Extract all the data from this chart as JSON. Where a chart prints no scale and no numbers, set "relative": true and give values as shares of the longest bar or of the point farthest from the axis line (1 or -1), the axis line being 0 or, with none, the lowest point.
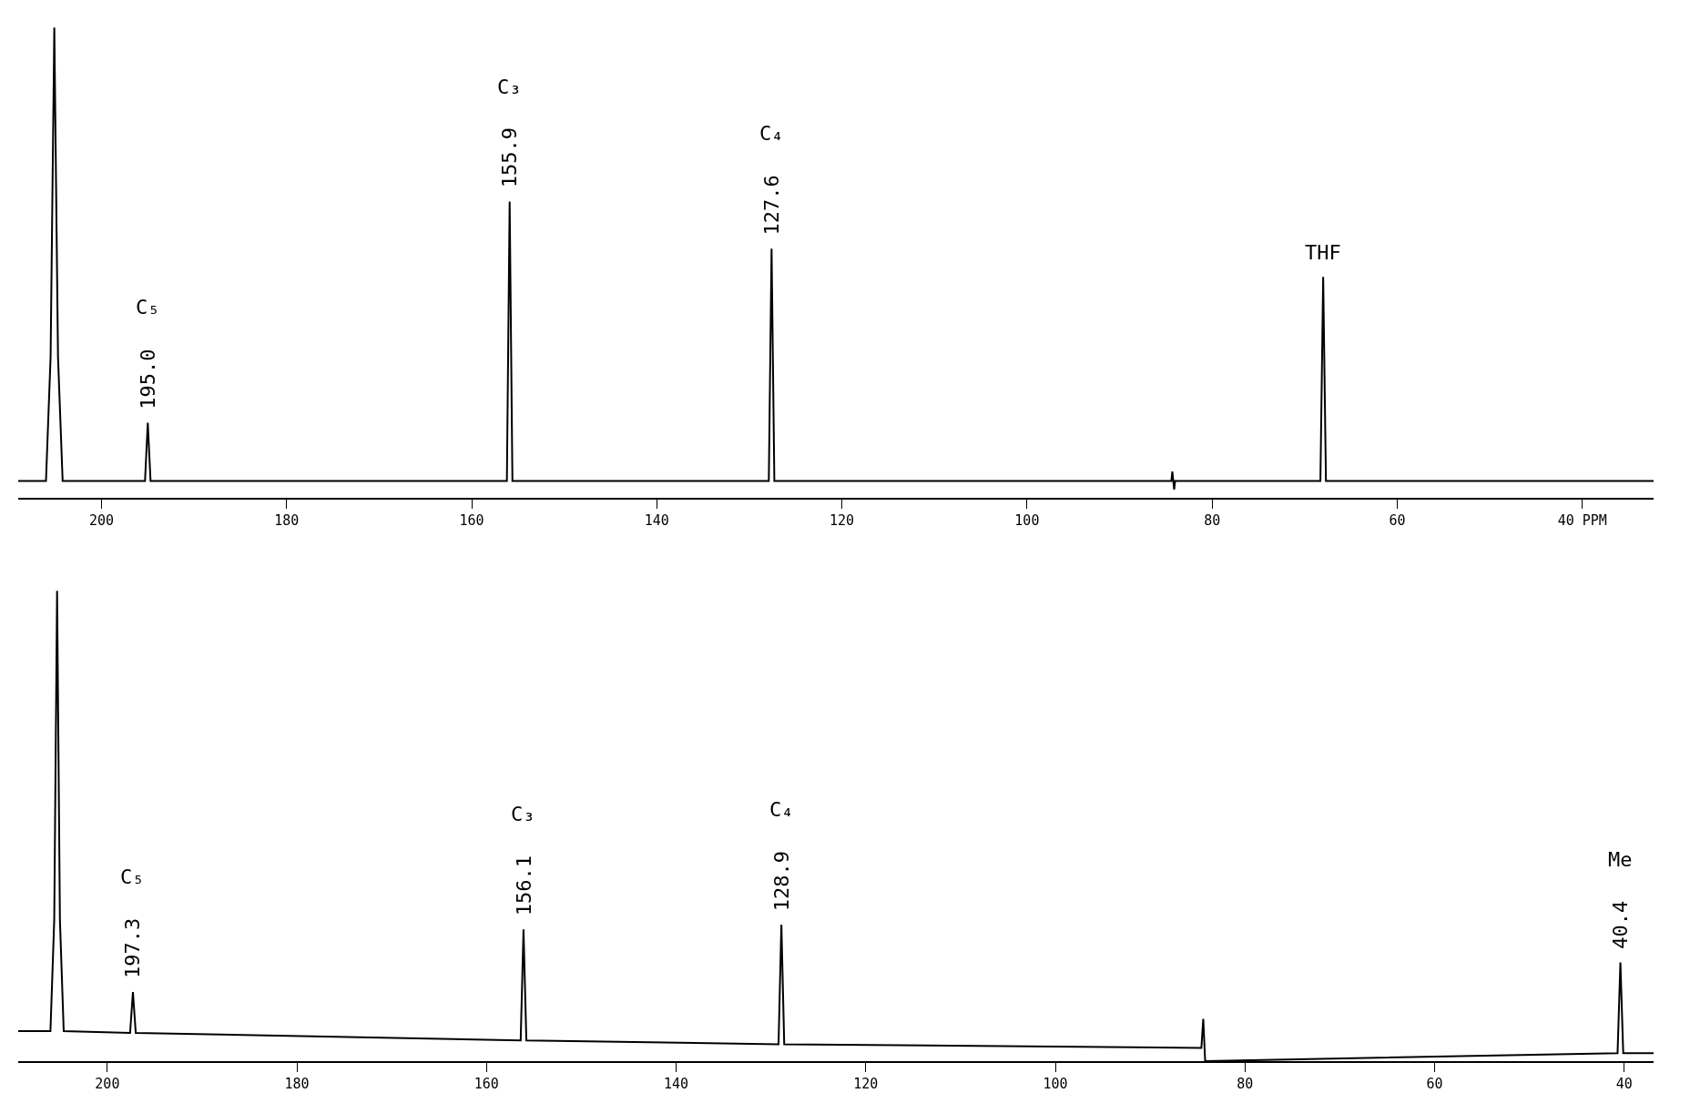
{
  "chart_data": [
    {
      "type": "line",
      "relative": true,
      "xlim": [
        209,
        32.3
      ],
      "xticks": [
        200,
        180,
        160,
        140,
        120,
        100,
        80,
        60,
        {
          "value": 40,
          "label": "40 PPM"
        }
      ],
      "series": [
        {
          "color": "#000000",
          "x": [
            209,
            206.0,
            205.5,
            205.1,
            204.7,
            204.2,
            195.3,
            195.0,
            194.7,
            156.2,
            155.9,
            155.6,
            127.9,
            127.6,
            127.3,
            84.4,
            84.3,
            84.1,
            84.0,
            68.3,
            68.0,
            67.7,
            32.3
          ],
          "values": [
            0.036,
            0.036,
            0.3,
            1.0,
            0.3,
            0.036,
            0.036,
            0.16,
            0.036,
            0.036,
            0.63,
            0.036,
            0.036,
            0.53,
            0.036,
            0.036,
            0.056,
            0.018,
            0.036,
            0.036,
            0.47,
            0.036,
            0.036
          ]
        }
      ],
      "annotations": [
        "C₅",
        {
          "text": "195.0",
          "x": 195.0,
          "y": 0.16
        },
        "C₃",
        {
          "text": "155.9",
          "x": 155.9,
          "y": 0.63
        },
        "C₄",
        {
          "text": "127.6",
          "x": 127.6,
          "y": 0.53
        },
        {
          "text": "THF",
          "x": 68.0,
          "y": 0.47
        }
      ]
    },
    {
      "type": "line",
      "relative": true,
      "xlim": [
        209.4,
        36.9
      ],
      "xticks": [
        200,
        180,
        160,
        140,
        120,
        100,
        80,
        60,
        40
      ],
      "series": [
        {
          "color": "#000000",
          "x": [
            209.4,
            206.0,
            205.6,
            205.3,
            205.0,
            204.6,
            197.6,
            197.3,
            197.0,
            156.4,
            156.1,
            155.8,
            129.2,
            128.9,
            128.6,
            84.6,
            84.4,
            84.2,
            40.7,
            40.4,
            40.1,
            36.9
          ],
          "values": [
            0.064,
            0.064,
            0.3,
            1.0,
            0.3,
            0.064,
            0.06,
            0.147,
            0.06,
            0.044,
            0.28,
            0.044,
            0.036,
            0.29,
            0.036,
            0.028,
            0.09,
            0.0,
            0.017,
            0.21,
            0.017,
            0.017
          ]
        }
      ],
      "annotations": [
        "C₅",
        {
          "text": "197.3",
          "x": 197.3,
          "y": 0.147
        },
        "C₃",
        {
          "text": "156.1",
          "x": 156.1,
          "y": 0.28
        },
        "C₄",
        {
          "text": "128.9",
          "x": 128.9,
          "y": 0.29
        },
        "Me",
        {
          "text": "40.4",
          "x": 40.4,
          "y": 0.21
        }
      ]
    }
  ]
}
